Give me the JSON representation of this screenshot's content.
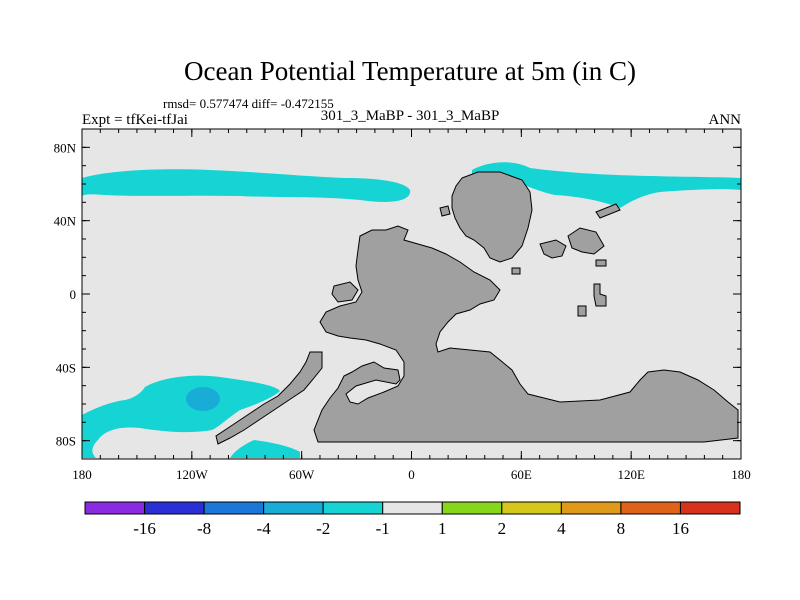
{
  "chart_data": {
    "type": "heatmap",
    "title": "Ocean Potential Temperature at 5m (in C)",
    "stats_line": "rmsd= 0.577474 diff= -0.472155",
    "experiment_label": "Expt = tfKei-tfJai",
    "center_label": "301_3_MaBP - 301_3_MaBP",
    "season_label": "ANN",
    "x_axis": {
      "range": [
        -180,
        180
      ],
      "ticks": [
        -180,
        -120,
        -60,
        0,
        60,
        120,
        180
      ],
      "tick_labels": [
        "180",
        "120W",
        "60W",
        "0",
        "60E",
        "120E",
        "180"
      ]
    },
    "y_axis": {
      "range": [
        -90,
        90
      ],
      "ticks": [
        80,
        40,
        0,
        -40,
        -80
      ],
      "tick_labels": [
        "80N",
        "40N",
        "0",
        "40S",
        "80S"
      ]
    },
    "colorbar": {
      "boundaries": [
        "-16",
        "-8",
        "-4",
        "-2",
        "-1",
        "1",
        "2",
        "4",
        "8",
        "16"
      ],
      "colors": [
        "#8a2be2",
        "#2a2fd6",
        "#1c78d8",
        "#19acd6",
        "#16d4d4",
        "#e6e6e6",
        "#86d61a",
        "#d6c81a",
        "#e09a1a",
        "#e0621a",
        "#d8321c"
      ]
    },
    "background_value_color": "#e6e6e6",
    "land_color": "#a0a0a0",
    "negative_anomaly_color": "#16d4d4",
    "strong_negative_color": "#19acd6"
  }
}
